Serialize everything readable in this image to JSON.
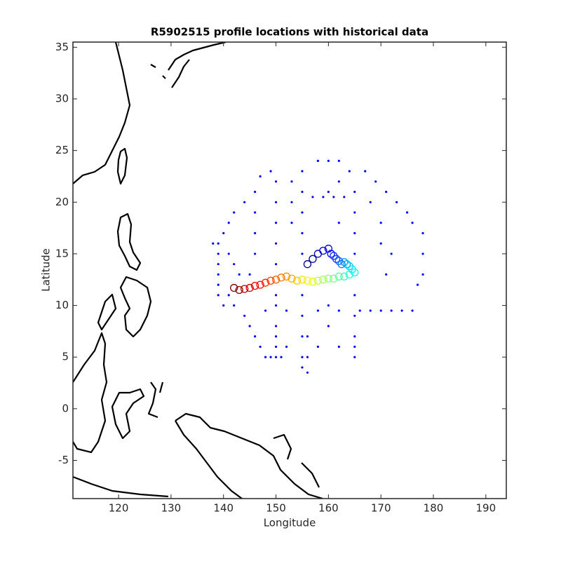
{
  "chart_data": {
    "type": "scatter",
    "title": "R5902515 profile locations with historical data",
    "x_label": "Longitude",
    "y_label": "Latitude",
    "xlim": [
      111.3,
      193.9
    ],
    "ylim": [
      -8.7,
      35.5
    ],
    "xticks": [
      120,
      130,
      140,
      150,
      160,
      170,
      180,
      190
    ],
    "yticks": [
      -5,
      0,
      5,
      10,
      15,
      20,
      25,
      30,
      35
    ],
    "series": [
      {
        "color": "#0000ff",
        "marker": "dot",
        "x": [
          139,
          139,
          139,
          139,
          139,
          139,
          138,
          140,
          141,
          142,
          141,
          142,
          143,
          141,
          142,
          144,
          145,
          146,
          147,
          148,
          149,
          150,
          151,
          150,
          150,
          150,
          150,
          150,
          150,
          150,
          150,
          150,
          150,
          149,
          146,
          146,
          146,
          146,
          153,
          153,
          153,
          155,
          155,
          155,
          155,
          155,
          155,
          155,
          155,
          155,
          155,
          156,
          156,
          156,
          157,
          159,
          161,
          163,
          158,
          160,
          162,
          164,
          165,
          165,
          165,
          165,
          165,
          165,
          165,
          165,
          165,
          160,
          162,
          160,
          162,
          148,
          152,
          158,
          162,
          166,
          168,
          170,
          172,
          174,
          176,
          167,
          169,
          171,
          173,
          175,
          176,
          178,
          178,
          178,
          177,
          172,
          171,
          170,
          168,
          170,
          158,
          152,
          147,
          144,
          140,
          145,
          160,
          162
        ],
        "values": [
          16,
          15,
          14,
          13,
          12,
          11,
          16,
          17,
          18,
          19,
          15,
          14,
          13,
          11,
          10,
          9,
          8,
          7,
          6,
          5,
          5,
          5,
          5,
          6,
          7,
          8,
          10,
          11,
          14,
          16,
          18,
          20,
          22,
          23,
          21,
          19,
          17,
          15,
          22,
          20,
          18,
          23,
          21,
          19,
          17,
          15,
          11,
          9,
          7,
          5,
          4,
          3.5,
          5,
          7,
          20.5,
          20.5,
          20.5,
          20.5,
          24,
          24,
          24,
          23,
          21,
          19,
          17,
          15,
          11,
          9,
          7,
          5,
          6,
          8,
          6,
          10,
          18,
          9.5,
          9.5,
          9.5,
          9.5,
          9.5,
          9.5,
          9.5,
          9.5,
          9.5,
          9.5,
          23,
          22,
          21,
          20,
          19,
          18,
          17,
          15,
          13,
          12,
          15,
          13,
          16,
          20,
          18,
          6,
          6,
          22.5,
          20,
          10,
          13,
          21,
          22
        ]
      },
      {
        "colormap": "jet",
        "marker": "circle",
        "x": [
          156,
          157,
          158,
          159,
          160,
          160.5,
          161,
          161.5,
          162,
          162.5,
          163,
          163.5,
          164,
          164.5,
          165,
          164,
          163,
          162,
          161,
          160,
          159,
          158,
          157,
          156,
          155,
          154,
          153,
          152,
          151,
          150,
          149,
          148,
          147,
          146,
          145,
          144,
          143,
          142
        ],
        "values": [
          14,
          14.5,
          15,
          15.3,
          15.5,
          15,
          14.8,
          14.5,
          14.3,
          14,
          14.2,
          14,
          13.8,
          13.5,
          13.2,
          13,
          12.8,
          12.8,
          12.6,
          12.6,
          12.5,
          12.4,
          12.3,
          12.4,
          12.5,
          12.4,
          12.6,
          12.8,
          12.7,
          12.5,
          12.4,
          12.2,
          12,
          11.9,
          11.7,
          11.6,
          11.5,
          11.7
        ]
      }
    ]
  }
}
